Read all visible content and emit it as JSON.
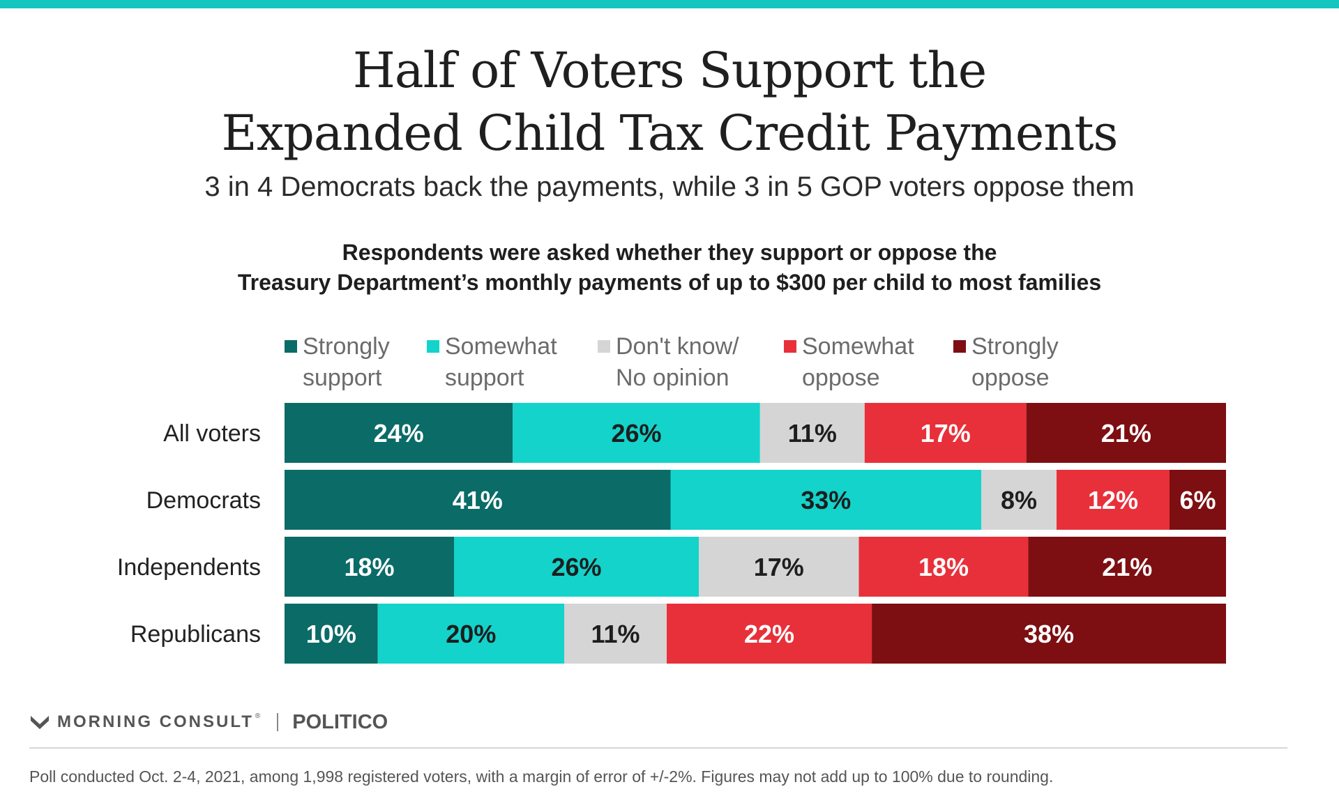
{
  "title_lines": [
    "Half of Voters Support the",
    "Expanded Child Tax Credit Payments"
  ],
  "subtitle": "3 in 4 Democrats back the payments, while 3 in 5 GOP voters oppose them",
  "question_lines": [
    "Respondents were asked whether they support or oppose the",
    "Treasury Department’s monthly payments of up to $300 per child to most families"
  ],
  "brand": {
    "morning_consult": "MORNING CONSULT",
    "reg_mark": "®",
    "politico": "POLITICO"
  },
  "footnote": "Poll conducted Oct. 2-4, 2021, among 1,998 registered voters, with a margin of error of +/-2%. Figures may not add up to 100% due to rounding.",
  "colors": {
    "accent_bar": "#13c6c0",
    "strongly_support": "#0b6b67",
    "somewhat_support": "#13d3cb",
    "dont_know": "#d5d5d5",
    "somewhat_oppose": "#e8303a",
    "strongly_oppose": "#7d0f12"
  },
  "chart_data": {
    "type": "bar",
    "orientation": "horizontal",
    "stacked": true,
    "normalized": true,
    "categories": [
      "All voters",
      "Democrats",
      "Independents",
      "Republicans"
    ],
    "series": [
      {
        "name": "Strongly support",
        "legend_lines": [
          "Strongly",
          "support"
        ],
        "color": "#0b6b67",
        "label_color": "#ffffff",
        "values": [
          24,
          41,
          18,
          10
        ]
      },
      {
        "name": "Somewhat support",
        "legend_lines": [
          "Somewhat",
          "support"
        ],
        "color": "#13d3cb",
        "label_color": "#1e1e1e",
        "values": [
          26,
          33,
          26,
          20
        ]
      },
      {
        "name": "Don't know/ No opinion",
        "legend_lines": [
          "Don't know/",
          "No opinion"
        ],
        "color": "#d5d5d5",
        "label_color": "#1e1e1e",
        "values": [
          11,
          8,
          17,
          11
        ]
      },
      {
        "name": "Somewhat oppose",
        "legend_lines": [
          "Somewhat",
          "oppose"
        ],
        "color": "#e8303a",
        "label_color": "#ffffff",
        "values": [
          17,
          12,
          18,
          22
        ]
      },
      {
        "name": "Strongly oppose",
        "legend_lines": [
          "Strongly",
          "oppose"
        ],
        "color": "#7d0f12",
        "label_color": "#ffffff",
        "values": [
          21,
          6,
          21,
          38
        ]
      }
    ],
    "value_suffix": "%",
    "legend_position": "top",
    "grid": false
  }
}
